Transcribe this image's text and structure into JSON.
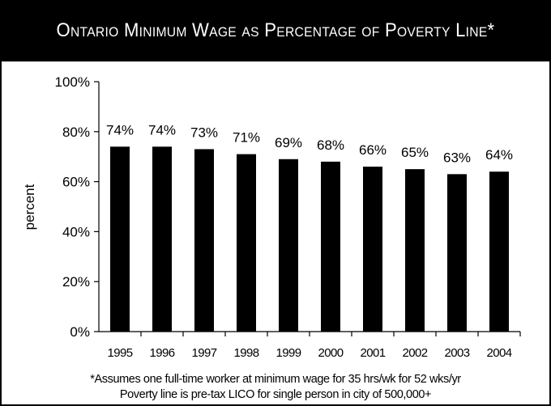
{
  "header": {
    "title": "Ontario Minimum Wage as Percentage of Poverty Line*"
  },
  "chart_data": {
    "type": "bar",
    "title": "Ontario Minimum Wage as Percentage of Poverty Line*",
    "xlabel": "",
    "ylabel": "percent",
    "categories": [
      "1995",
      "1996",
      "1997",
      "1998",
      "1999",
      "2000",
      "2001",
      "2002",
      "2003",
      "2004"
    ],
    "values": [
      74,
      74,
      73,
      71,
      69,
      68,
      66,
      65,
      63,
      64
    ],
    "data_labels": [
      "74%",
      "74%",
      "73%",
      "71%",
      "69%",
      "68%",
      "66%",
      "65%",
      "63%",
      "64%"
    ],
    "ylim": [
      0,
      100
    ],
    "yticks": [
      "0%",
      "20%",
      "40%",
      "60%",
      "80%",
      "100%"
    ],
    "grid": false,
    "legend": "none",
    "bar_color": "#000000"
  },
  "footnotes": {
    "line1": "*Assumes one full-time worker at minimum wage for 35 hrs/wk for 52 wks/yr",
    "line2": "Poverty line is pre-tax LICO for single person in city of 500,000+"
  }
}
